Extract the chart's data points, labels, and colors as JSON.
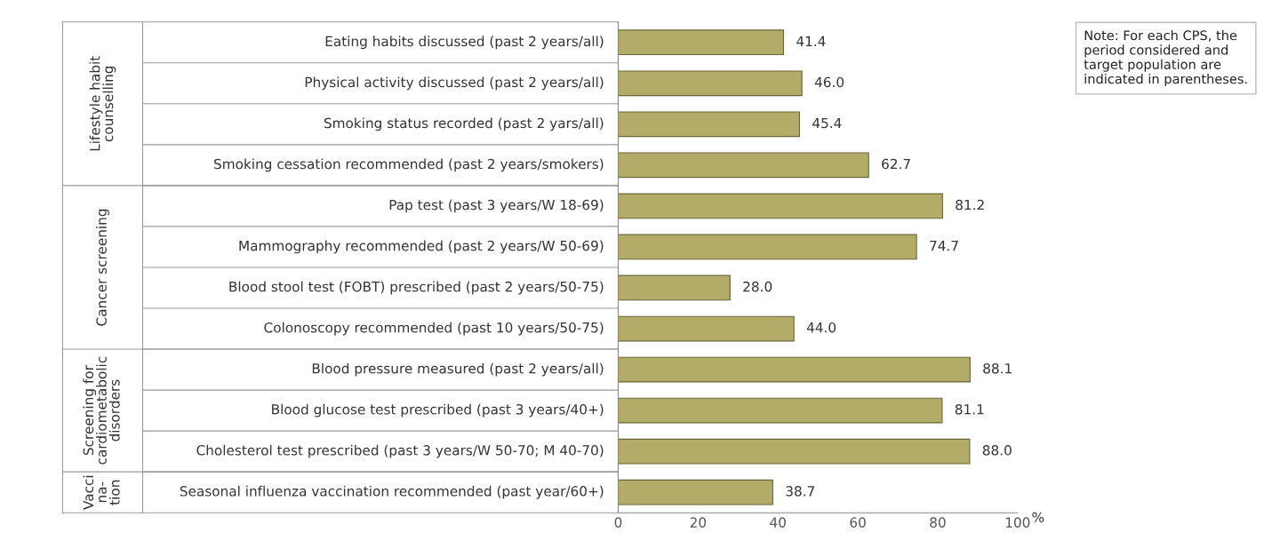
{
  "chart_data": {
    "type": "bar",
    "orientation": "horizontal",
    "categories": [
      "Eating habits discussed (past 2 years/all)",
      "Physical activity discussed (past 2 years/all)",
      "Smoking status recorded (past 2 yars/all)",
      "Smoking cessation recommended (past 2 years/smokers)",
      "Pap test (past 3 years/W 18-69)",
      "Mammography recommended (past 2 years/W 50-69)",
      "Blood stool test (FOBT) prescribed (past 2 years/50-75)",
      "Colonoscopy recommended (past 10 years/50-75)",
      "Blood pressure measured (past 2 years/all)",
      "Blood glucose test prescribed (past 3 years/40+)",
      "Cholesterol test prescribed (past 3 years/W 50-70; M 40-70)",
      "Seasonal influenza vaccination recommended (past year/60+)"
    ],
    "values": [
      41.4,
      46.0,
      45.4,
      62.7,
      81.2,
      74.7,
      28.0,
      44.0,
      88.1,
      81.1,
      88.0,
      38.7
    ],
    "value_labels": [
      "41.4",
      "46.0",
      "45.4",
      "62.7",
      "81.2",
      "74.7",
      "28.0",
      "44.0",
      "88.1",
      "81.1",
      "88.0",
      "38.7"
    ],
    "color": "#b3ac68",
    "xlim": [
      0,
      100
    ],
    "xticks": [
      0,
      20,
      40,
      60,
      80,
      100
    ],
    "xlabel": "%",
    "grid": false,
    "annotations": [
      "Lifestyle habit\ncounselling",
      "Cancer screening",
      "Screening for\ncardiometabolic\ndisorders",
      "Vacci\nna-\ntion",
      "Note: For each CPS, the period considered and target population are indicated in parentheses."
    ]
  }
}
